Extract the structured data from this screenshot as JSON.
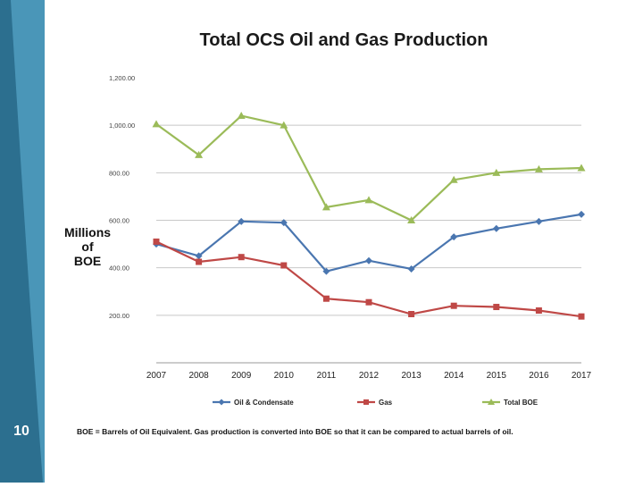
{
  "slide": {
    "number": "10"
  },
  "chart_data": {
    "type": "line",
    "title": "Total OCS Oil and Gas Production",
    "ylabel": [
      "Millions",
      "of",
      "BOE"
    ],
    "xlabel": "",
    "categories": [
      "2007",
      "2008",
      "2009",
      "2010",
      "2011",
      "2012",
      "2013",
      "2014",
      "2015",
      "2016",
      "2017"
    ],
    "yticks": [
      "1,200.00",
      "1,000.00",
      "800.00",
      "600.00",
      "400.00",
      "200.00"
    ],
    "ytick_values": [
      1200,
      1000,
      800,
      600,
      400,
      200
    ],
    "ylim": [
      0,
      1200
    ],
    "grid": true,
    "legend_position": "bottom",
    "series": [
      {
        "name": "Oil & Condensate",
        "color": "#4a76b0",
        "marker": "diamond",
        "values": [
          500,
          450,
          595,
          590,
          385,
          430,
          395,
          530,
          565,
          595,
          625
        ]
      },
      {
        "name": "Gas",
        "color": "#bf4846",
        "marker": "square",
        "values": [
          510,
          425,
          445,
          410,
          270,
          255,
          205,
          240,
          235,
          220,
          195
        ]
      },
      {
        "name": "Total BOE",
        "color": "#9bbb59",
        "marker": "triangle",
        "values": [
          1005,
          875,
          1040,
          1000,
          655,
          685,
          600,
          770,
          800,
          815,
          820
        ]
      }
    ]
  },
  "footnote": "BOE = Barrels of Oil Equivalent.  Gas production is converted into BOE so that it can be compared to actual barrels of oil.",
  "colors": {
    "sidebar_dark": "#2c6f8f",
    "sidebar_light": "#4a96b8",
    "grid": "#c8c8c8"
  }
}
